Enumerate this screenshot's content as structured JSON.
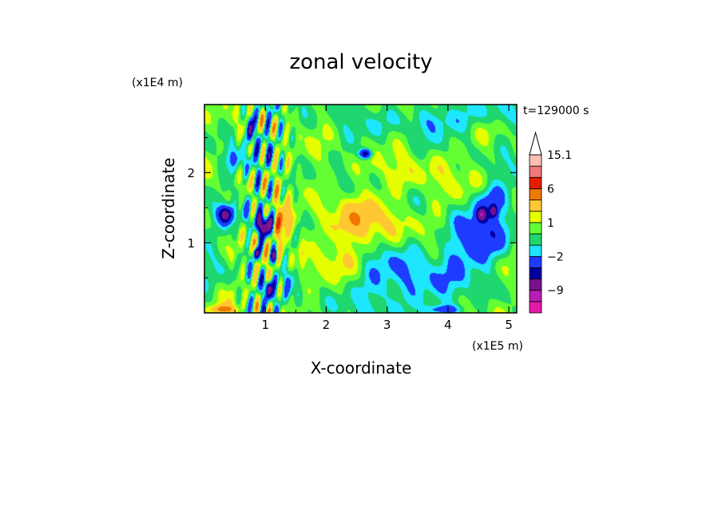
{
  "chart_data": {
    "type": "heatmap",
    "title": "zonal velocity",
    "xlabel": "X-coordinate",
    "ylabel": "Z-coordinate",
    "x_scale_label": "(x1E5 m)",
    "y_scale_label": "(x1E4 m)",
    "time_label": "t=129000 s",
    "xlim": [
      0,
      5.13
    ],
    "ylim": [
      0,
      2.97
    ],
    "x_ticks": [
      1,
      2,
      3,
      4,
      5
    ],
    "x_tick_labels": [
      "1",
      "2",
      "3",
      "4",
      "5"
    ],
    "y_ticks": [
      1,
      2
    ],
    "y_tick_labels": [
      "1",
      "2"
    ],
    "background_value": 0,
    "fields": [
      {
        "x": 2.6,
        "z": 1.3,
        "sx": 0.8,
        "sz": 0.35,
        "a": 2.6
      },
      {
        "x": 2.2,
        "z": 0.75,
        "sx": 0.5,
        "sz": 0.25,
        "a": 1.4
      },
      {
        "x": 3.6,
        "z": 2.0,
        "sx": 0.7,
        "sz": 0.4,
        "a": 1.3
      },
      {
        "x": 2.0,
        "z": 2.0,
        "sx": 0.4,
        "sz": 0.3,
        "a": 0.9
      },
      {
        "x": 1.3,
        "z": 1.25,
        "sx": 0.16,
        "sz": 0.22,
        "a": 5.2
      },
      {
        "x": 1.0,
        "z": 1.25,
        "sx": 0.12,
        "sz": 0.15,
        "a": -10.5
      },
      {
        "x": 0.35,
        "z": 1.4,
        "sx": 0.12,
        "sz": 0.12,
        "a": -6.5
      },
      {
        "x": 0.75,
        "z": 2.6,
        "sx": 0.05,
        "sz": 0.18,
        "a": -8.5
      },
      {
        "x": 2.65,
        "z": 2.27,
        "sx": 0.1,
        "sz": 0.07,
        "a": -6.5
      },
      {
        "x": 4.55,
        "z": 1.4,
        "sx": 0.08,
        "sz": 0.09,
        "a": -6.5
      },
      {
        "x": 4.75,
        "z": 1.45,
        "sx": 0.06,
        "sz": 0.08,
        "a": -5.5
      },
      {
        "x": 4.5,
        "z": 1.05,
        "sx": 0.5,
        "sz": 0.35,
        "a": -3.6
      },
      {
        "x": 4.7,
        "z": 1.6,
        "sx": 0.25,
        "sz": 0.22,
        "a": -2.8
      },
      {
        "x": 3.35,
        "z": 0.45,
        "sx": 0.8,
        "sz": 0.45,
        "a": -2.3
      },
      {
        "x": 3.75,
        "z": 2.75,
        "sx": 0.7,
        "sz": 0.2,
        "a": -1.8
      },
      {
        "x": 4.8,
        "z": 2.85,
        "sx": 0.35,
        "sz": 0.2,
        "a": -1.4
      },
      {
        "x": 0.45,
        "z": 2.2,
        "sx": 0.12,
        "sz": 0.18,
        "a": -2.8
      },
      {
        "x": 1.6,
        "z": 0.85,
        "sx": 0.08,
        "sz": 0.2,
        "a": 2.0
      },
      {
        "x": 0.3,
        "z": 0.05,
        "sx": 0.2,
        "sz": 0.06,
        "a": 4.2
      },
      {
        "x": 3.9,
        "z": 0.05,
        "sx": 0.3,
        "sz": 0.06,
        "a": -2.6
      },
      {
        "x": 1.05,
        "z": 0.35,
        "sx": 0.05,
        "sz": 0.12,
        "a": -9.5
      },
      {
        "x": 0.85,
        "z": 0.85,
        "sx": 0.05,
        "sz": 0.08,
        "a": -7.5
      },
      {
        "x": 1.15,
        "z": 0.8,
        "sx": 0.04,
        "sz": 0.08,
        "a": -6.5
      }
    ],
    "wave_zone": {
      "x_center": 1.0,
      "x_width": 0.5,
      "amplitude": 5.2,
      "kx": 28,
      "kz": 7
    },
    "colorbar": {
      "levels": [
        -15,
        -12,
        -9,
        -6,
        -4,
        -2,
        -1,
        0,
        1,
        2,
        4,
        6,
        9,
        12,
        15.1
      ],
      "colors": [
        "#e619a6",
        "#b41eb4",
        "#78128c",
        "#0000a0",
        "#1e3cff",
        "#1ee6ff",
        "#1ed76e",
        "#64ff32",
        "#e6ff00",
        "#ffc832",
        "#f07800",
        "#e61e00",
        "#f07878",
        "#ffbeb4"
      ],
      "extend_color": "#ffffff",
      "labels": [
        {
          "value": 15.1,
          "text": "15.1"
        },
        {
          "value": 6,
          "text": "6"
        },
        {
          "value": 1,
          "text": "1"
        },
        {
          "value": -2,
          "text": "−2"
        },
        {
          "value": -9,
          "text": "−9"
        }
      ]
    }
  }
}
